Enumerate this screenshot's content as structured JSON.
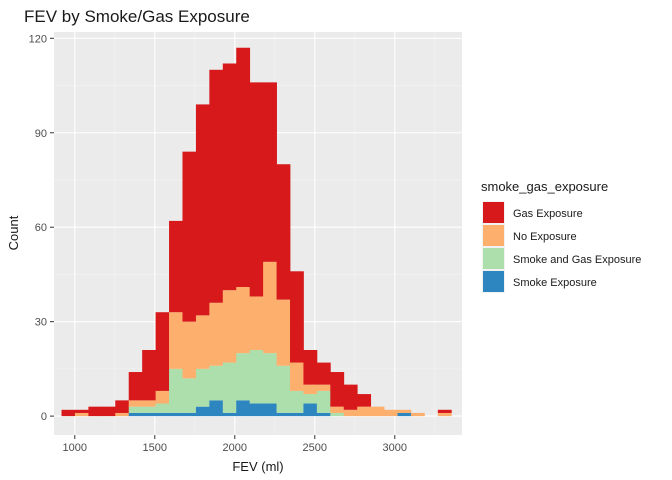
{
  "chart_data": {
    "type": "bar",
    "subtype": "stacked-histogram",
    "title": "FEV by Smoke/Gas Exposure",
    "xlabel": "FEV (ml)",
    "ylabel": "Count",
    "xlim": [
      870,
      3420
    ],
    "ylim": [
      -6,
      122
    ],
    "xticks": [
      1000,
      1500,
      2000,
      2500,
      3000
    ],
    "yticks": [
      0,
      30,
      60,
      90,
      120
    ],
    "bin_width": 84,
    "bin_starts": [
      917,
      1001,
      1085,
      1169,
      1253,
      1337,
      1421,
      1505,
      1589,
      1673,
      1757,
      1841,
      1925,
      2009,
      2093,
      2177,
      2261,
      2345,
      2429,
      2513,
      2597,
      2681,
      2765,
      2849,
      2933,
      3017,
      3101,
      3185,
      3269
    ],
    "grid": true,
    "legend": {
      "title": "smoke_gas_exposure",
      "position": "right"
    },
    "series": [
      {
        "name": "Smoke Exposure",
        "color": "#2E86C1",
        "values": [
          0,
          0,
          0,
          0,
          0,
          1,
          1,
          1,
          1,
          1,
          3,
          5,
          1,
          5,
          4,
          4,
          1,
          1,
          4,
          1,
          0,
          0,
          0,
          0,
          0,
          1,
          0,
          0,
          0
        ]
      },
      {
        "name": "Smoke and Gas Exposure",
        "color": "#ADDFAD",
        "values": [
          0,
          0,
          0,
          0,
          0,
          2,
          2,
          3,
          14,
          11,
          12,
          11,
          16,
          15,
          17,
          16,
          15,
          7,
          3,
          7,
          1,
          0,
          0,
          0,
          0,
          0,
          0,
          0,
          0
        ]
      },
      {
        "name": "No Exposure",
        "color": "#FDB06E",
        "values": [
          0,
          1,
          0,
          0,
          1,
          2,
          2,
          4,
          18,
          18,
          17,
          20,
          23,
          21,
          17,
          29,
          21,
          9,
          3,
          2,
          2,
          2,
          3,
          3,
          2,
          1,
          1,
          0,
          1
        ]
      },
      {
        "name": "Gas Exposure",
        "color": "#D7191C",
        "values": [
          2,
          1,
          3,
          3,
          4,
          9,
          16,
          25,
          29,
          54,
          67,
          74,
          72,
          76,
          68,
          57,
          43,
          29,
          11,
          7,
          11,
          8,
          4,
          0,
          0,
          0,
          0,
          0,
          1
        ]
      }
    ],
    "legend_order": [
      "Gas Exposure",
      "No Exposure",
      "Smoke and Gas Exposure",
      "Smoke Exposure"
    ]
  }
}
